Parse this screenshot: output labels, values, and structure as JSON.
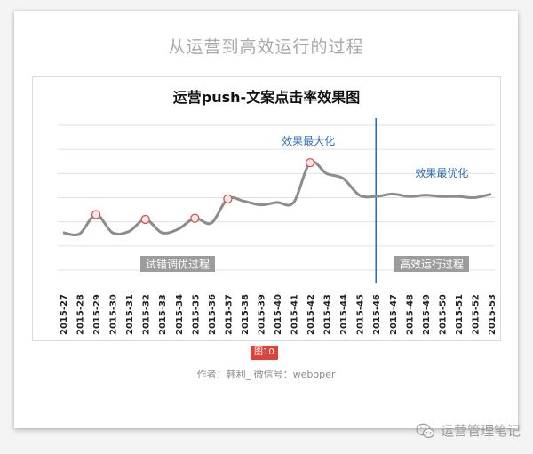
{
  "heading": "从运营到高效运行的过程",
  "figure_badge": "图10",
  "author_line": "作者：韩利_ 微信号：weboper",
  "watermark": {
    "text": "运营管理笔记",
    "icon": "wechat-icon"
  },
  "colors": {
    "line": "#8c8c8c",
    "marker": "#d9534f",
    "divider": "#2f6db5",
    "callout": "#2f6db5",
    "label_bg": "#9c9c9c",
    "grid": "#e0e0e0"
  },
  "chart_data": {
    "type": "line",
    "title": "运营push-文案点击率效果图",
    "categories": [
      "2015-27",
      "2015-28",
      "2015-29",
      "2015-30",
      "2015-31",
      "2015-32",
      "2015-33",
      "2015-34",
      "2015-35",
      "2015-36",
      "2015-37",
      "2015-38",
      "2015-39",
      "2015-40",
      "2015-41",
      "2015-42",
      "2015-43",
      "2015-44",
      "2015-45",
      "2015-46",
      "2015-47",
      "2015-48",
      "2015-49",
      "2015-50",
      "2015-51",
      "2015-52",
      "2015-53"
    ],
    "series": [
      {
        "values": [
          3.1,
          3.0,
          4.6,
          3.1,
          3.2,
          4.2,
          3.1,
          3.4,
          4.3,
          3.9,
          5.9,
          5.7,
          5.4,
          5.6,
          5.6,
          8.9,
          8.0,
          7.6,
          6.2,
          6.1,
          6.3,
          6.1,
          6.2,
          6.1,
          6.1,
          6.0,
          6.3
        ]
      }
    ],
    "highlighted_points": [
      "2015-29",
      "2015-32",
      "2015-35",
      "2015-37",
      "2015-42"
    ],
    "divider_at": "2015-46",
    "annotations": {
      "peak": "效果最大化",
      "optimized": "效果最优化",
      "phase_left": "试错调优过程",
      "phase_right": "高效运行过程"
    },
    "ylim": [
      0,
      12
    ],
    "grid": true,
    "y_tick_labels": false
  }
}
